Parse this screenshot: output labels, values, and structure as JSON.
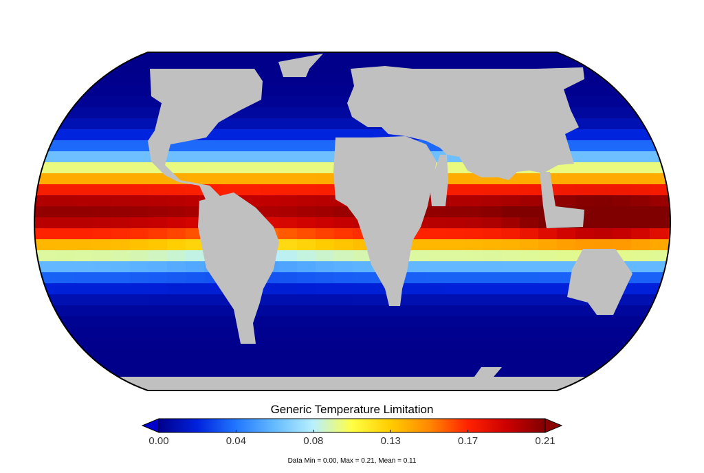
{
  "map": {
    "projection": "Robinson",
    "variable": "Generic Temperature Limitation",
    "land_color": "#c0c0c0",
    "grid_resolution": "coarse (~5 degree)"
  },
  "colorbar": {
    "title": "Generic Temperature Limitation",
    "min": 0.0,
    "max": 0.21,
    "tick_labels": [
      "0.00",
      "0.04",
      "0.08",
      "0.13",
      "0.17",
      "0.21"
    ],
    "tick_values": [
      0.0,
      0.042,
      0.084,
      0.126,
      0.168,
      0.21
    ],
    "colors": [
      "#00008b",
      "#0022dd",
      "#2277ff",
      "#66bbff",
      "#b8f0ff",
      "#ffff44",
      "#ffcc00",
      "#ff8800",
      "#ff2200",
      "#cc0000",
      "#800000"
    ],
    "under_color": "#0000cc",
    "over_color": "#8b0000"
  },
  "stats": {
    "text": "Data Min = 0.00, Max = 0.21, Mean = 0.11",
    "min": 0.0,
    "max": 0.21,
    "mean": 0.11
  }
}
